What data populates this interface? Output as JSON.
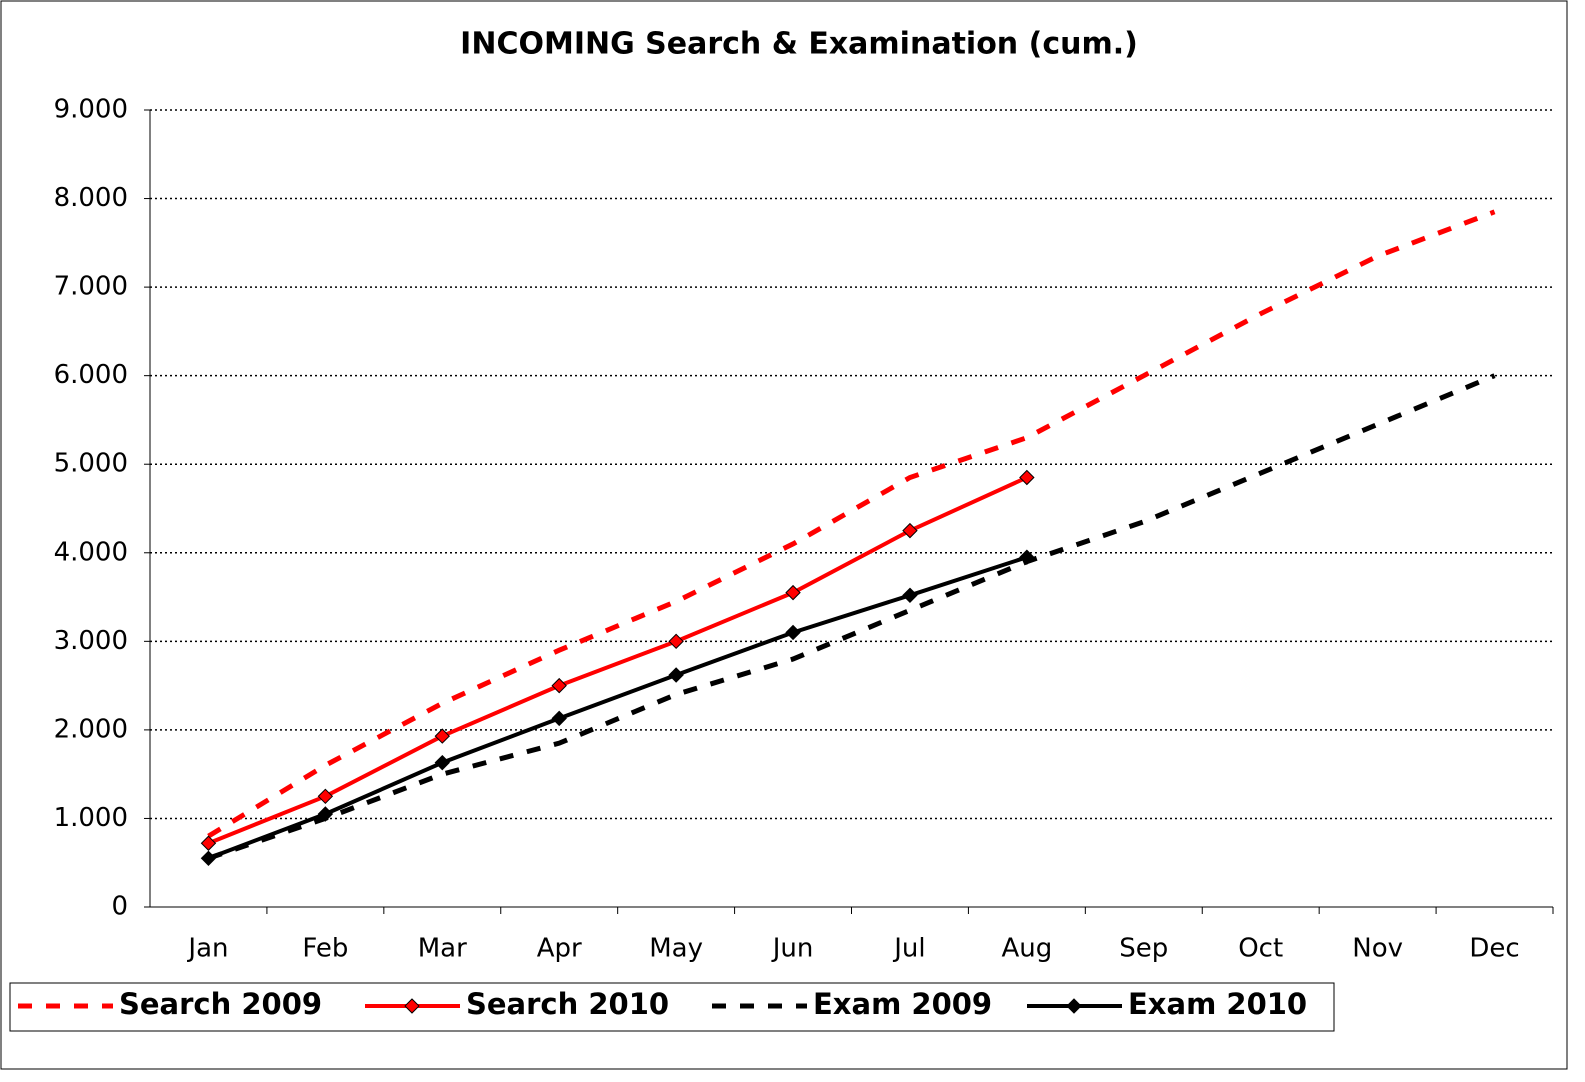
{
  "chart_data": {
    "type": "line",
    "title": "INCOMING Search & Examination (cum.)",
    "categories": [
      "Jan",
      "Feb",
      "Mar",
      "Apr",
      "May",
      "Jun",
      "Jul",
      "Aug",
      "Sep",
      "Oct",
      "Nov",
      "Dec"
    ],
    "series": [
      {
        "name": "Search 2009",
        "color": "#ff0000",
        "dashed": true,
        "marker": null,
        "values": [
          800,
          1600,
          2300,
          2900,
          3450,
          4100,
          4850,
          5300,
          6000,
          6700,
          7350,
          7850
        ]
      },
      {
        "name": "Search 2010",
        "color": "#ff0000",
        "dashed": false,
        "marker": "diamond",
        "values": [
          720,
          1250,
          1930,
          2500,
          3000,
          3550,
          4250,
          4850,
          null,
          null,
          null,
          null
        ]
      },
      {
        "name": "Exam 2009",
        "color": "#000000",
        "dashed": true,
        "marker": null,
        "values": [
          550,
          1000,
          1500,
          1850,
          2400,
          2800,
          3350,
          3900,
          4350,
          4900,
          5450,
          6000
        ]
      },
      {
        "name": "Exam 2010",
        "color": "#000000",
        "dashed": false,
        "marker": "diamond",
        "values": [
          550,
          1050,
          1630,
          2130,
          2620,
          3100,
          3520,
          3950,
          null,
          null,
          null,
          null
        ]
      }
    ],
    "ylim": [
      0,
      9000
    ],
    "yticks": [
      0,
      {
        "value": 1000,
        "label": "1.000"
      },
      {
        "value": 2000,
        "label": "2.000"
      },
      {
        "value": 3000,
        "label": "3.000"
      },
      {
        "value": 4000,
        "label": "4.000"
      },
      {
        "value": 5000,
        "label": "5.000"
      },
      {
        "value": 6000,
        "label": "6.000"
      },
      {
        "value": 7000,
        "label": "7.000"
      },
      {
        "value": 8000,
        "label": "8.000"
      },
      {
        "value": 9000,
        "label": "9.000"
      }
    ],
    "grid": true,
    "legend": "bottom"
  }
}
